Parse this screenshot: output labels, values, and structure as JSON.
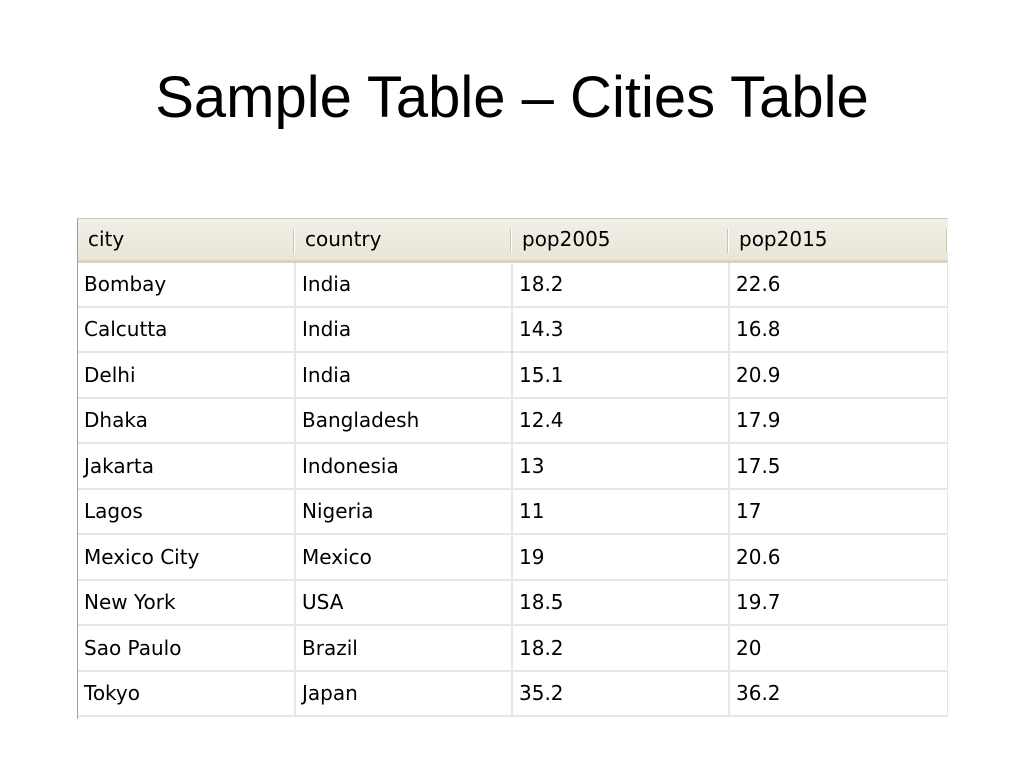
{
  "slide": {
    "title": "Sample Table – Cities Table"
  },
  "table": {
    "columns": [
      "city",
      "country",
      "pop2005",
      "pop2015"
    ],
    "rows": [
      [
        "Bombay",
        "India",
        "18.2",
        "22.6"
      ],
      [
        "Calcutta",
        "India",
        "14.3",
        "16.8"
      ],
      [
        "Delhi",
        "India",
        "15.1",
        "20.9"
      ],
      [
        "Dhaka",
        "Bangladesh",
        "12.4",
        "17.9"
      ],
      [
        "Jakarta",
        "Indonesia",
        "13",
        "17.5"
      ],
      [
        "Lagos",
        "Nigeria",
        "11",
        "17"
      ],
      [
        "Mexico City",
        "Mexico",
        "19",
        "20.6"
      ],
      [
        "New York",
        "USA",
        "18.5",
        "19.7"
      ],
      [
        "Sao Paulo",
        "Brazil",
        "18.2",
        "20"
      ],
      [
        "Tokyo",
        "Japan",
        "35.2",
        "36.2"
      ]
    ]
  }
}
